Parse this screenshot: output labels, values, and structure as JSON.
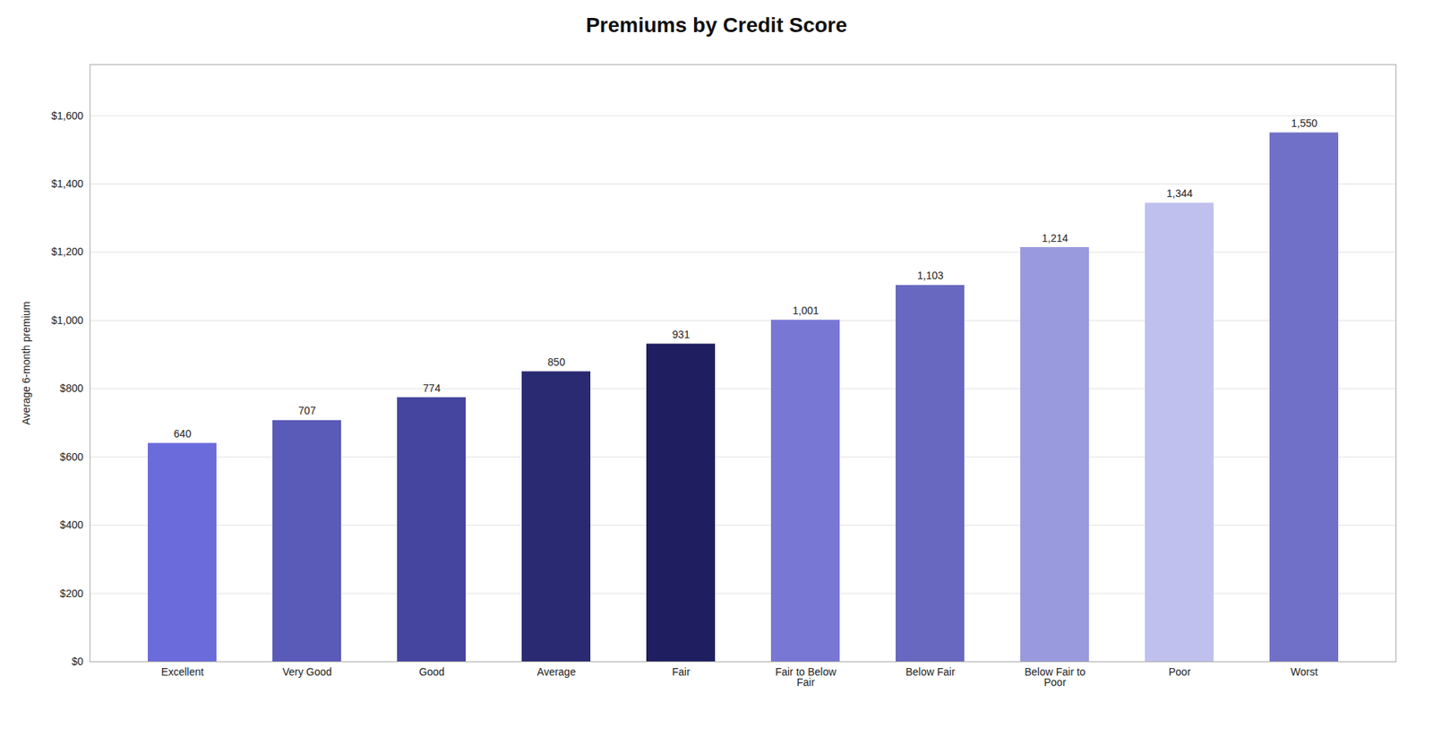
{
  "chart_data": {
    "type": "bar",
    "title": "Premiums by Credit Score",
    "categories": [
      "Excellent",
      "Very Good",
      "Good",
      "Average",
      "Fair",
      "Fair to Below\nFair",
      "Below Fair",
      "Below Fair to\nPoor",
      "Poor",
      "Worst"
    ],
    "values": [
      640,
      707,
      774,
      850,
      931,
      1001,
      1103,
      1214,
      1344,
      1550
    ],
    "value_labels": [
      "640",
      "707",
      "774",
      "850",
      "931",
      "1,001",
      "1,103",
      "1,214",
      "1,344",
      "1,550"
    ],
    "colors": [
      "#6B6BDB",
      "#5A5AB8",
      "#4545A0",
      "#2A2A72",
      "#1E1E60",
      "#7878D4",
      "#6868C0",
      "#9999DD",
      "#C0C0EE",
      "#7070C8"
    ],
    "ylabel": "Average 6-month premium",
    "ylim": [
      0,
      1750
    ],
    "yticks": [
      {
        "value": 0,
        "label": "$0"
      },
      {
        "value": 200,
        "label": "$200"
      },
      {
        "value": 400,
        "label": "$400"
      },
      {
        "value": 600,
        "label": "$600"
      },
      {
        "value": 800,
        "label": "$800"
      },
      {
        "value": 1000,
        "label": "$1,000"
      },
      {
        "value": 1200,
        "label": "$1,200"
      },
      {
        "value": 1400,
        "label": "$1,400"
      },
      {
        "value": 1600,
        "label": "$1,600"
      }
    ],
    "grid": true,
    "data_labels": true
  }
}
